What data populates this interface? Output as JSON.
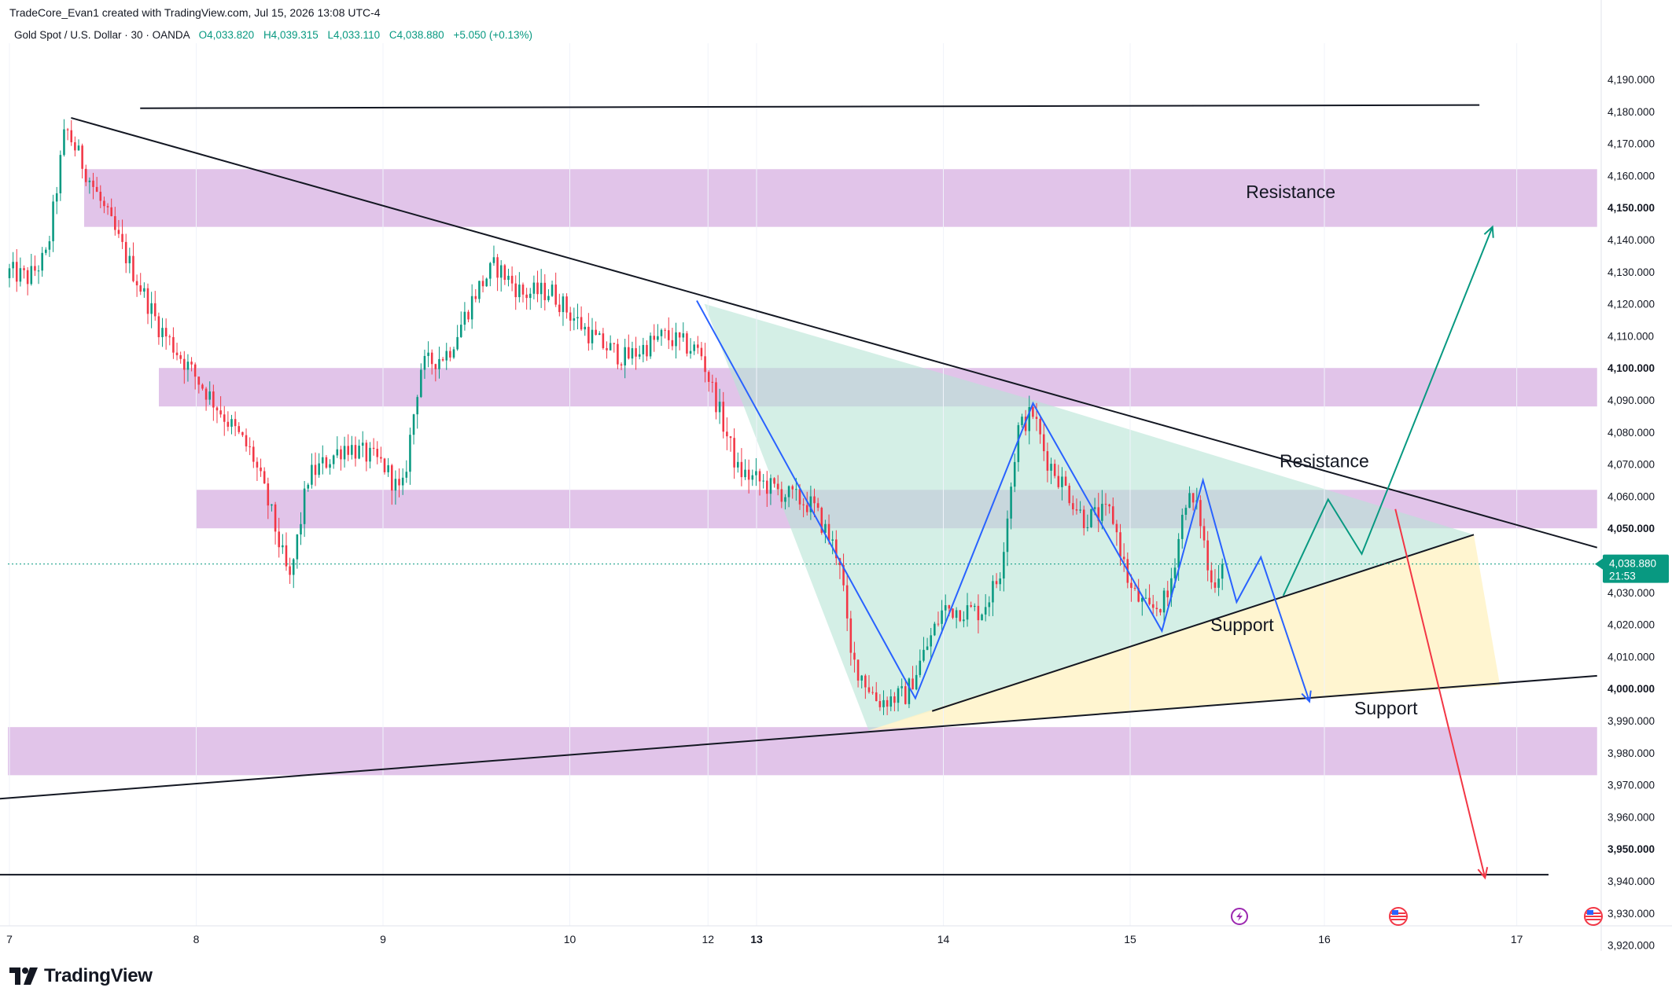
{
  "header": {
    "credit": "TradeCore_Evan1 created with TradingView.com, Jul 15, 2026 13:08 UTC-4",
    "symbol": "Gold Spot / U.S. Dollar · 30 · OANDA",
    "open": "O4,033.820",
    "high": "H4,039.315",
    "low": "L4,033.110",
    "close": "C4,038.880",
    "change": "+5.050 (+0.13%)"
  },
  "footer": {
    "logo_text": "TradingView"
  },
  "colors": {
    "up": "#089981",
    "down": "#f23645",
    "zone": "#e1c4e9",
    "triangle_fill": "#b7e4d6",
    "yellow_fill": "#fff3c4",
    "blue_path": "#2962ff",
    "green_arrow": "#089981",
    "red_arrow": "#f23645"
  },
  "chart_data": {
    "type": "candlestick",
    "title": "Gold Spot / U.S. Dollar",
    "ylim": [
      3915,
      4195
    ],
    "y_ticks": [
      3920,
      3930,
      3940,
      3950,
      3960,
      3970,
      3980,
      3990,
      4000,
      4010,
      4020,
      4030,
      4040,
      4050,
      4060,
      4070,
      4080,
      4090,
      4100,
      4110,
      4120,
      4130,
      4140,
      4150,
      4160,
      4170,
      4180,
      4190
    ],
    "y_tick_labels": [
      "3,920.000",
      "3,930.000",
      "3,940.000",
      "3,950.000",
      "3,960.000",
      "3,970.000",
      "3,980.000",
      "3,990.000",
      "4,000.000",
      "4,010.000",
      "4,020.000",
      "4,030.000",
      "4,040.000",
      "4,050.000",
      "4,060.000",
      "4,070.000",
      "4,080.000",
      "4,090.000",
      "4,100.000",
      "4,110.000",
      "4,120.000",
      "4,130.000",
      "4,140.000",
      "4,150.000",
      "4,160.000",
      "4,170.000",
      "4,180.000",
      "4,190.000"
    ],
    "bold_ticks": [
      "3,950.000",
      "4,000.000",
      "4,050.000",
      "4,100.000",
      "4,150.000"
    ],
    "x_ticks": [
      {
        "label": "7",
        "x": 0.0
      },
      {
        "label": "8",
        "x": 1.0
      },
      {
        "label": "9",
        "x": 2.0
      },
      {
        "label": "10",
        "x": 3.0
      },
      {
        "label": "12",
        "x": 3.74
      },
      {
        "label": "13",
        "x": 4.0,
        "bold": true
      },
      {
        "label": "14",
        "x": 5.0
      },
      {
        "label": "15",
        "x": 6.0
      },
      {
        "label": "16",
        "x": 7.04
      },
      {
        "label": "17",
        "x": 8.07
      }
    ],
    "last_price": {
      "label": "4,038.880",
      "countdown": "21:53",
      "value": 4038.88
    },
    "anchors": [
      [
        0.3,
        4175
      ],
      [
        0.8,
        4113
      ],
      [
        1.3,
        4073
      ],
      [
        1.4,
        4055
      ],
      [
        1.5,
        4033
      ],
      [
        1.6,
        4066
      ],
      [
        1.8,
        4076
      ],
      [
        2.0,
        4070
      ],
      [
        2.1,
        4060
      ],
      [
        2.2,
        4100
      ],
      [
        2.35,
        4105
      ],
      [
        2.5,
        4124
      ],
      [
        2.6,
        4132
      ],
      [
        2.75,
        4123
      ],
      [
        2.9,
        4124
      ],
      [
        3.0,
        4117
      ],
      [
        3.15,
        4108
      ],
      [
        3.3,
        4103
      ],
      [
        3.5,
        4110
      ],
      [
        3.7,
        4105
      ],
      [
        3.9,
        4068
      ],
      [
        4.1,
        4062
      ],
      [
        4.3,
        4057
      ],
      [
        4.45,
        4040
      ],
      [
        4.5,
        4010
      ],
      [
        4.65,
        3996
      ],
      [
        4.8,
        3998
      ],
      [
        5.0,
        4025
      ],
      [
        5.2,
        4024
      ],
      [
        5.3,
        4035
      ],
      [
        5.4,
        4081
      ],
      [
        5.48,
        4086
      ],
      [
        5.55,
        4072
      ],
      [
        5.65,
        4063
      ],
      [
        5.75,
        4053
      ],
      [
        5.9,
        4055
      ],
      [
        6.0,
        4031
      ],
      [
        6.1,
        4024
      ],
      [
        6.2,
        4028
      ],
      [
        6.3,
        4060
      ],
      [
        6.37,
        4055
      ],
      [
        6.43,
        4032
      ],
      [
        6.5,
        4038.88
      ]
    ],
    "annotations": [
      {
        "text": "Resistance",
        "kind": "label",
        "at": [
          6.62,
          4153
        ]
      },
      {
        "text": "Resistance",
        "kind": "label",
        "at": [
          6.8,
          4069
        ]
      },
      {
        "text": "Support",
        "kind": "label",
        "at": [
          6.43,
          4018
        ]
      },
      {
        "text": "Support",
        "kind": "label",
        "at": [
          7.2,
          3992
        ]
      }
    ],
    "zones": [
      {
        "x0": -0.2,
        "x1": 8.5,
        "y0": 3973,
        "y1": 3988
      },
      {
        "x0": 1.0,
        "x1": 8.5,
        "y0": 4050,
        "y1": 4062
      },
      {
        "x0": 0.8,
        "x1": 8.5,
        "y0": 4088,
        "y1": 4100
      },
      {
        "x0": 0.4,
        "x1": 8.5,
        "y0": 4144,
        "y1": 4162
      }
    ],
    "lines": [
      {
        "p1": [
          0.7,
          4181
        ],
        "p2": [
          7.87,
          4182
        ],
        "color": "#131722"
      },
      {
        "p1": [
          -0.2,
          3942
        ],
        "p2": [
          8.24,
          3942
        ],
        "color": "#131722"
      },
      {
        "p1": [
          0.33,
          4178
        ],
        "p2": [
          8.5,
          4044
        ],
        "color": "#131722"
      },
      {
        "p1": [
          -0.2,
          3965
        ],
        "p2": [
          8.5,
          4004
        ],
        "color": "#131722"
      },
      {
        "p1": [
          4.94,
          3993
        ],
        "p2": [
          7.84,
          4048
        ],
        "color": "#131722"
      }
    ],
    "triangle_fill": [
      [
        3.72,
        4120
      ],
      [
        5.48,
        4090
      ],
      [
        7.84,
        4048
      ],
      [
        4.94,
        3993
      ],
      [
        4.6,
        3987
      ]
    ],
    "yellow_fill": [
      [
        4.6,
        3987
      ],
      [
        7.84,
        4048
      ],
      [
        7.98,
        4001
      ],
      [
        7.0,
        3997
      ]
    ],
    "blue_path": [
      [
        3.68,
        4121
      ],
      [
        4.85,
        3997
      ],
      [
        5.48,
        4089
      ],
      [
        6.17,
        4018
      ],
      [
        6.39,
        4065
      ],
      [
        6.57,
        4027
      ],
      [
        6.7,
        4041
      ],
      [
        6.96,
        3996
      ]
    ],
    "green_arrow": [
      [
        6.82,
        4029
      ],
      [
        7.06,
        4059
      ],
      [
        7.24,
        4042
      ],
      [
        7.94,
        4144
      ]
    ],
    "red_arrow": [
      [
        7.42,
        4056
      ],
      [
        7.9,
        3941
      ]
    ]
  }
}
